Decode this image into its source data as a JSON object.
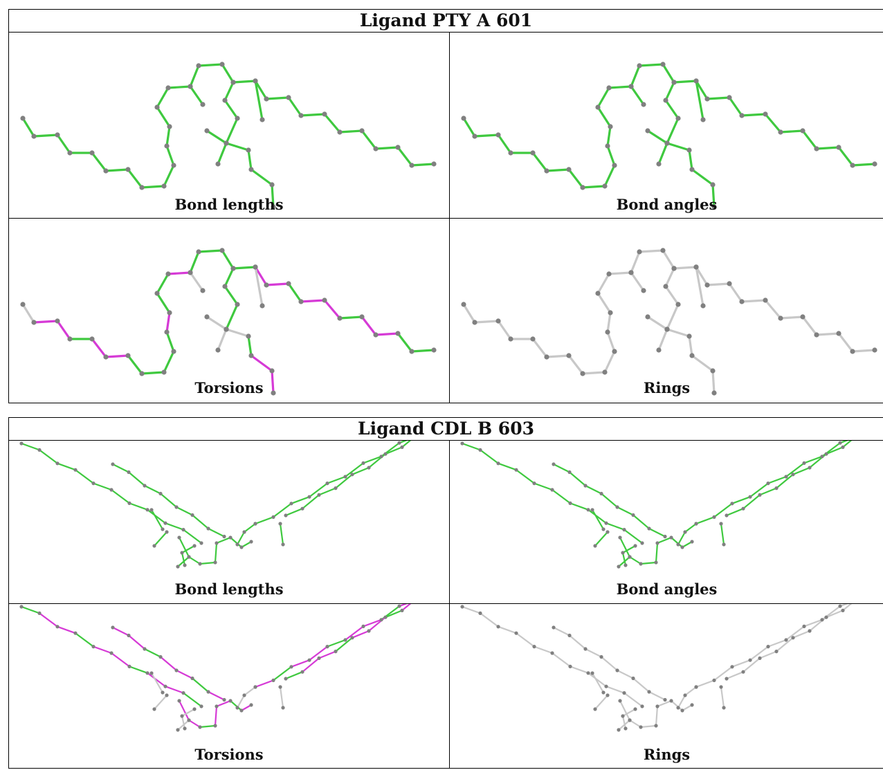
{
  "ligands": [
    {
      "title": "Ligand PTY A 601",
      "panels": [
        {
          "caption": "Bond lengths",
          "scheme": "green"
        },
        {
          "caption": "Bond angles",
          "scheme": "green"
        },
        {
          "caption": "Torsions",
          "scheme": "mixed"
        },
        {
          "caption": "Rings",
          "scheme": "gray"
        }
      ]
    },
    {
      "title": "Ligand CDL B 603",
      "panels": [
        {
          "caption": "Bond lengths",
          "scheme": "green"
        },
        {
          "caption": "Bond angles",
          "scheme": "green"
        },
        {
          "caption": "Torsions",
          "scheme": "mixed"
        },
        {
          "caption": "Rings",
          "scheme": "gray"
        }
      ]
    }
  ],
  "colors": {
    "bond_green": "#3fc93f",
    "bond_magenta": "#d63ad6",
    "bond_gray": "#c8c8c8",
    "atom": "#808080"
  }
}
